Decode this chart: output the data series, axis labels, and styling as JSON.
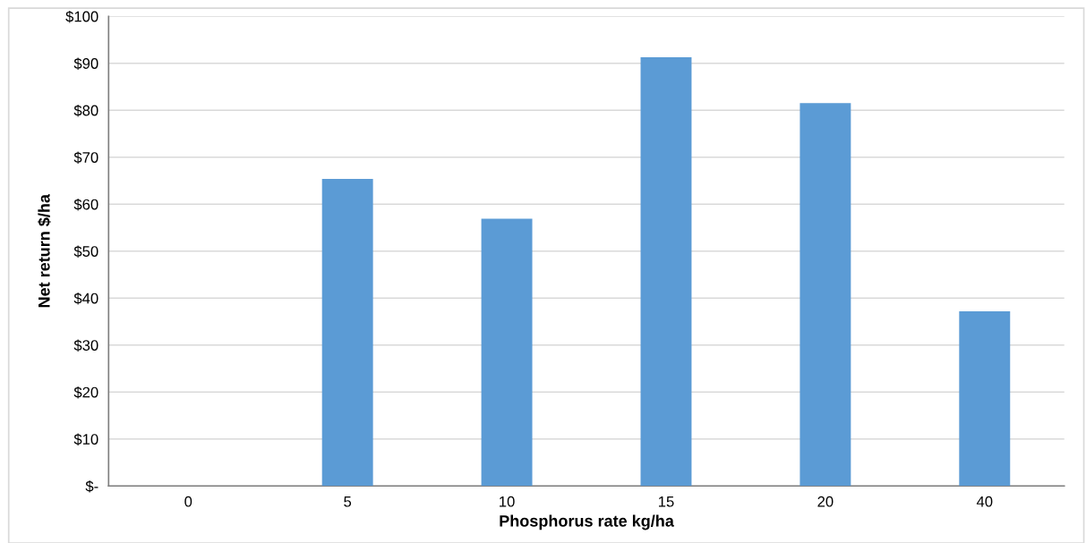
{
  "chart_data": {
    "type": "bar",
    "xlabel": "Phosphorus rate kg/ha",
    "ylabel": "Net return $/ha",
    "categories": [
      "0",
      "5",
      "10",
      "15",
      "20",
      "40"
    ],
    "values": [
      0,
      65.4,
      56.9,
      91.3,
      81.5,
      37.2
    ],
    "color": "#5b9bd5",
    "ylim": [
      0,
      100
    ],
    "yticks": [
      {
        "value": 0,
        "label": "$-"
      },
      {
        "value": 10,
        "label": "$10"
      },
      {
        "value": 20,
        "label": "$20"
      },
      {
        "value": 30,
        "label": "$30"
      },
      {
        "value": 40,
        "label": "$40"
      },
      {
        "value": 50,
        "label": "$50"
      },
      {
        "value": 60,
        "label": "$60"
      },
      {
        "value": 70,
        "label": "$70"
      },
      {
        "value": 80,
        "label": "$80"
      },
      {
        "value": 90,
        "label": "$90"
      },
      {
        "value": 100,
        "label": "$100"
      }
    ],
    "grid": "y"
  }
}
